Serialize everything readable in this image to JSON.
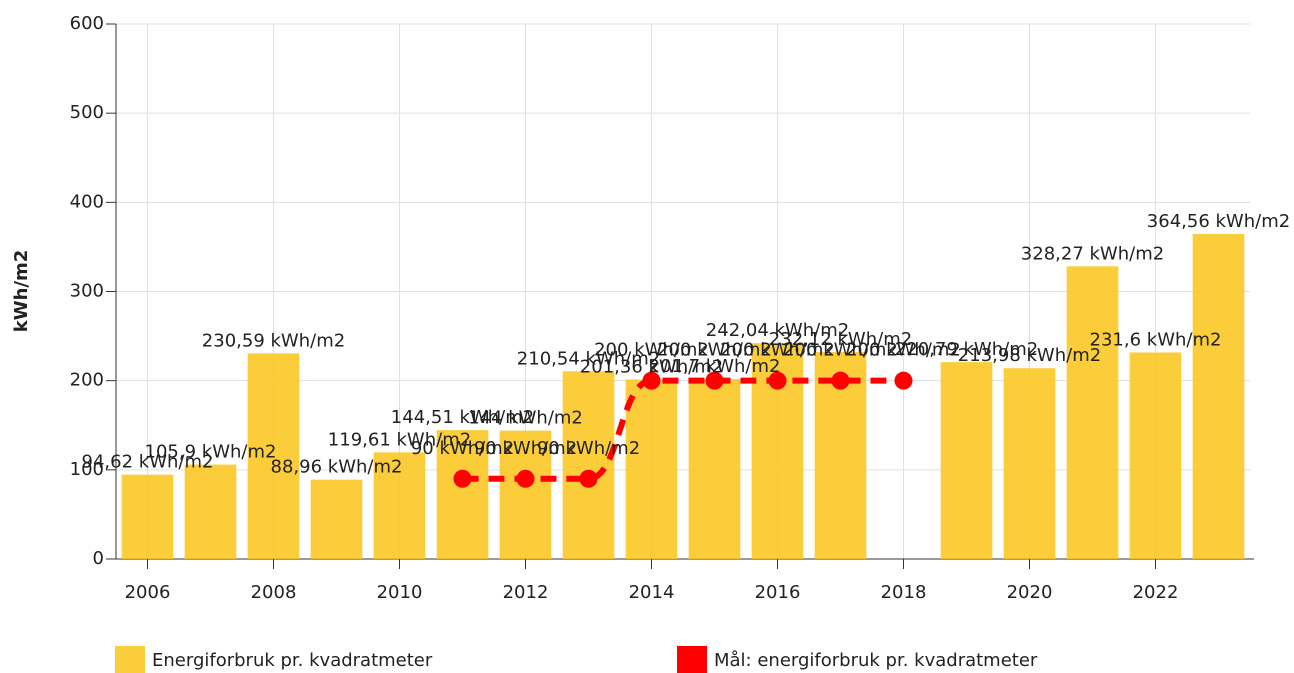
{
  "chart_data": {
    "type": "bar",
    "y_label": "kWh/m2",
    "x": [
      2006,
      2007,
      2008,
      2009,
      2010,
      2011,
      2012,
      2013,
      2014,
      2015,
      2016,
      2017,
      2018,
      2019,
      2020,
      2021,
      2022,
      2023
    ],
    "series": [
      {
        "name": "Energiforbruk pr. kvadratmeter",
        "type": "bar",
        "color": "#fcc419",
        "values": [
          94.62,
          105.9,
          230.59,
          88.96,
          119.61,
          144.51,
          144,
          210.54,
          201.36,
          201.7,
          242.04,
          232.12,
          null,
          220.79,
          213.98,
          328.27,
          231.6,
          364.56
        ],
        "value_labels": [
          "94,62 kWh/m2",
          "105,9 kWh/m2",
          "230,59 kWh/m2",
          "88,96 kWh/m2",
          "119,61 kWh/m2",
          "144,51 kWh/m2",
          "144 kWh/m2",
          "210,54 kWh/m2",
          "201,36 kWh/m2",
          "201,7 kWh/m2",
          "242,04 kWh/m2",
          "232,12 kWh/m2",
          null,
          "220,79 kWh/m2",
          "213,98 kWh/m2",
          "328,27 kWh/m2",
          "231,6 kWh/m2",
          "364,56 kWh/m2"
        ]
      },
      {
        "name": "Mål: energiforbruk pr. kvadratmeter",
        "type": "line",
        "color": "#ff0000",
        "values": [
          null,
          null,
          null,
          null,
          null,
          90,
          90,
          90,
          200,
          200,
          200,
          200,
          200,
          null,
          null,
          null,
          null,
          null
        ],
        "value_labels": [
          null,
          null,
          null,
          null,
          null,
          "90 kWh/m2",
          "90 kWh/m2",
          "90 kWh/m2",
          "200 kWh/m2",
          "200 kWh/m2",
          "200 kWh/m2",
          "200 kWh/m2",
          "200 kWh/m2",
          null,
          null,
          null,
          null,
          null
        ]
      }
    ],
    "xlim": [
      2005.5,
      2023.5
    ],
    "xticks": [
      2006,
      2008,
      2010,
      2012,
      2014,
      2016,
      2018,
      2020,
      2022
    ],
    "ylim": [
      0,
      600
    ],
    "yticks": [
      0,
      100,
      200,
      300,
      400,
      500,
      600
    ],
    "grid": true,
    "legend": "bottom"
  }
}
